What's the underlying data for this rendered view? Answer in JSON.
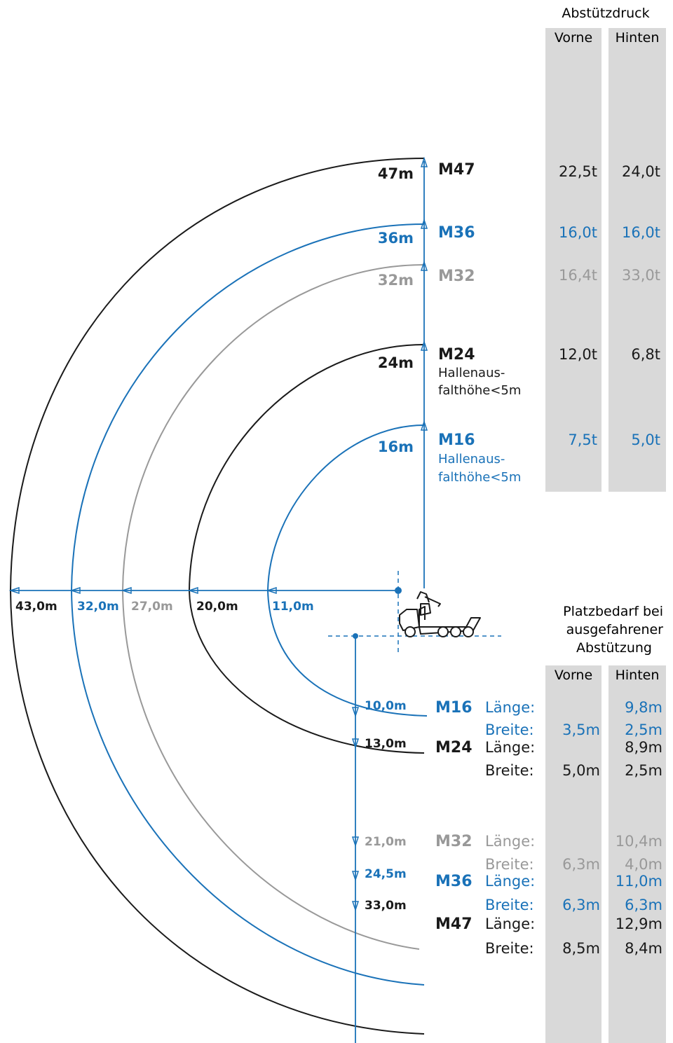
{
  "colors": {
    "black": "#1a1a1a",
    "blue": "#1a72b8",
    "gray": "#999999",
    "column_bg": "#d9d9d9"
  },
  "support_pressure": {
    "title": "Abstützdruck",
    "col_front": "Vorne",
    "col_rear": "Hinten",
    "rows": [
      {
        "model": "M47",
        "height": "47m",
        "front": "22,5t",
        "rear": "24,0t",
        "color": "black"
      },
      {
        "model": "M36",
        "height": "36m",
        "front": "16,0t",
        "rear": "16,0t",
        "color": "blue"
      },
      {
        "model": "M32",
        "height": "32m",
        "front": "16,4t",
        "rear": "33,0t",
        "color": "gray"
      },
      {
        "model": "M24",
        "height": "24m",
        "front": "12,0t",
        "rear": "6,8t",
        "color": "black",
        "note1": "Hallenaus-",
        "note2": "falthöhe<5m"
      },
      {
        "model": "M16",
        "height": "16m",
        "front": "7,5t",
        "rear": "5,0t",
        "color": "blue",
        "note1": "Hallenaus-",
        "note2": "falthöhe<5m"
      }
    ]
  },
  "reach_labels": [
    "43,0m",
    "32,0m",
    "27,0m",
    "20,0m",
    "11,0m"
  ],
  "space_requirement": {
    "title_line1": "Platzbedarf bei",
    "title_line2": "ausgefahrener",
    "title_line3": "Abstützung",
    "col_front": "Vorne",
    "col_rear": "Hinten",
    "length_label": "Länge:",
    "width_label": "Breite:",
    "rows": [
      {
        "model": "M16",
        "depth": "10,0m",
        "length_rear": "9,8m",
        "width_front": "3,5m",
        "width_rear": "2,5m",
        "color": "blue"
      },
      {
        "model": "M24",
        "depth": "13,0m",
        "length_rear": "8,9m",
        "width_front": "5,0m",
        "width_rear": "2,5m",
        "color": "black"
      },
      {
        "model": "M32",
        "depth": "21,0m",
        "length_rear": "10,4m",
        "width_front": "6,3m",
        "width_rear": "4,0m",
        "color": "gray"
      },
      {
        "model": "M36",
        "depth": "24,5m",
        "length_rear": "11,0m",
        "width_front": "6,3m",
        "width_rear": "6,3m",
        "color": "blue"
      },
      {
        "model": "M47",
        "depth": "33,0m",
        "length_rear": "12,9m",
        "width_front": "8,5m",
        "width_rear": "8,4m",
        "color": "black"
      }
    ]
  }
}
